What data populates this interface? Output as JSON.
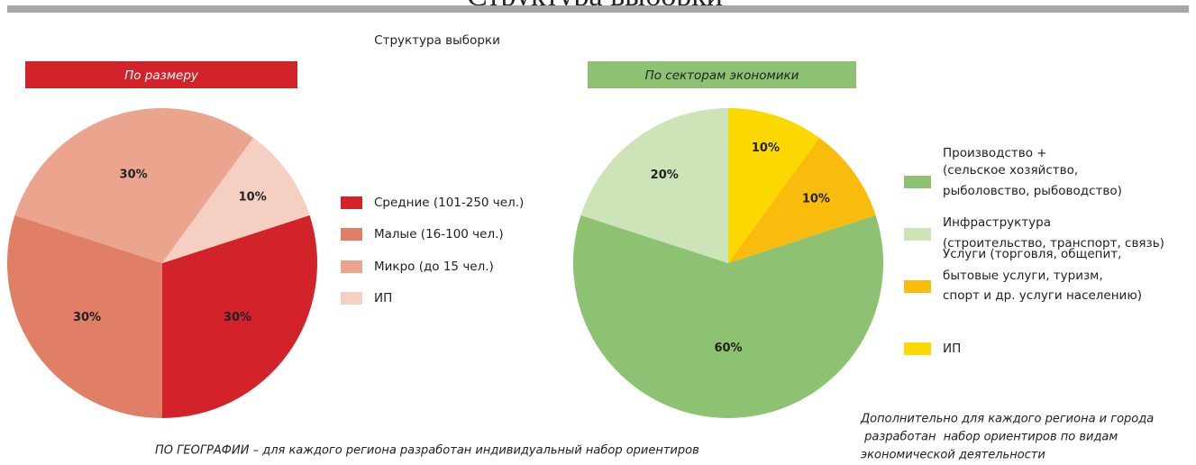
{
  "header": "Структура выборки",
  "subtitle": "Структура выборки",
  "chart_data": [
    {
      "type": "pie",
      "title": "По размеру",
      "values": [
        30,
        30,
        30,
        10
      ],
      "value_labels": [
        "30%",
        "30%",
        "30%",
        "10%"
      ],
      "colors": [
        "#d2232a",
        "#e07f65",
        "#eba58f",
        "#f5cfc2"
      ],
      "legend": [
        {
          "lines": [
            "Средние (101-250 чел.)"
          ],
          "color": "#d2232a"
        },
        {
          "lines": [
            "Малые (16-100 чел.)"
          ],
          "color": "#e07f65"
        },
        {
          "lines": [
            "Микро (до 15 чел.)"
          ],
          "color": "#eba58f"
        },
        {
          "lines": [
            "ИП"
          ],
          "color": "#f5cfc2"
        }
      ]
    },
    {
      "type": "pie",
      "title": "По секторам экономики",
      "values": [
        10,
        10,
        60,
        20
      ],
      "value_labels": [
        "10%",
        "10%",
        "60%",
        "20%"
      ],
      "colors": [
        "#fbd800",
        "#f9bb0c",
        "#8cc271",
        "#cde4b8"
      ],
      "legend": [
        {
          "lines": [
            "Производство +",
            "(сельское хозяйство,",
            "рыболовство, рыбоводство)"
          ],
          "color": "#8cc271"
        },
        {
          "lines": [
            "Инфраструктура",
            "(строительство, транспорт, связь)"
          ],
          "color": "#cde4b8"
        },
        {
          "lines": [
            "Услуги (торговля, общепит,",
            "бытовые услуги, туризм,",
            "спорт и др. услуги населению)"
          ],
          "color": "#f9bb0c"
        },
        {
          "lines": [
            "ИП"
          ],
          "color": "#fbd800"
        }
      ]
    }
  ],
  "notes": {
    "geography": "ПО ГЕОГРАФИИ – для каждого региона разработан индивидуальный набор ориентиров",
    "additional": [
      "Дополнительно для каждого региона и города",
      " разработан  набор ориентиров по видам",
      "экономической деятельности"
    ]
  }
}
